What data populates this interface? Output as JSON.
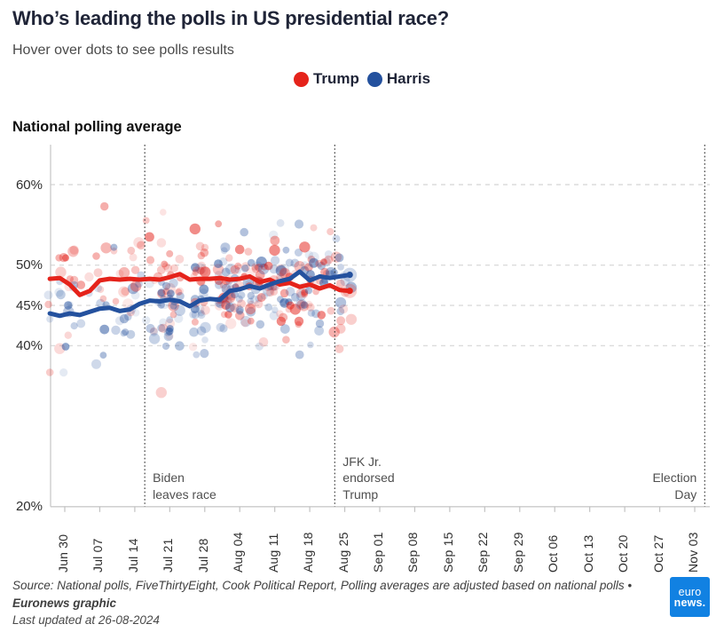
{
  "header": {
    "title": "Who’s leading the polls in US presidential race?",
    "subtitle": "Hover over dots to see polls results"
  },
  "legend": {
    "items": [
      {
        "label": "Trump",
        "color": "#e5231b"
      },
      {
        "label": "Harris",
        "color": "#24519e"
      }
    ]
  },
  "chart": {
    "heading": "National polling average"
  },
  "chart_data": {
    "type": "scatter+line",
    "title": "National polling average",
    "x_axis": {
      "base_date": "2024-06-30",
      "start": "2024-06-27",
      "end": "2024-11-06",
      "ticks": [
        {
          "label": "Jun 30",
          "date": "2024-06-30"
        },
        {
          "label": "Jul 07",
          "date": "2024-07-07"
        },
        {
          "label": "Jul 14",
          "date": "2024-07-14"
        },
        {
          "label": "Jul 21",
          "date": "2024-07-21"
        },
        {
          "label": "Jul 28",
          "date": "2024-07-28"
        },
        {
          "label": "Aug 04",
          "date": "2024-08-04"
        },
        {
          "label": "Aug 11",
          "date": "2024-08-11"
        },
        {
          "label": "Aug 18",
          "date": "2024-08-18"
        },
        {
          "label": "Aug 25",
          "date": "2024-08-25"
        },
        {
          "label": "Sep 01",
          "date": "2024-09-01"
        },
        {
          "label": "Sep 08",
          "date": "2024-09-08"
        },
        {
          "label": "Sep 15",
          "date": "2024-09-15"
        },
        {
          "label": "Sep 22",
          "date": "2024-09-22"
        },
        {
          "label": "Sep 29",
          "date": "2024-09-29"
        },
        {
          "label": "Oct 06",
          "date": "2024-10-06"
        },
        {
          "label": "Oct 13",
          "date": "2024-10-13"
        },
        {
          "label": "Oct 20",
          "date": "2024-10-20"
        },
        {
          "label": "Oct 27",
          "date": "2024-10-27"
        },
        {
          "label": "Nov 03",
          "date": "2024-11-03"
        }
      ]
    },
    "y_axis": {
      "unit": "%",
      "range": [
        20,
        65
      ],
      "tick_labels": [
        "60%",
        "50%",
        "45%",
        "40%",
        "20%"
      ],
      "tick_values": [
        60,
        50,
        45,
        40,
        20
      ],
      "grid_values": [
        60,
        50,
        45,
        40
      ],
      "grid_style": "dashed"
    },
    "series": [
      {
        "name": "Trump",
        "color": "#e5231b",
        "points": [
          [
            "2024-06-27",
            48.3
          ],
          [
            "2024-06-29",
            48.4
          ],
          [
            "2024-07-01",
            47.6
          ],
          [
            "2024-07-03",
            46.3
          ],
          [
            "2024-07-05",
            46.8
          ],
          [
            "2024-07-07",
            48.1
          ],
          [
            "2024-07-09",
            48.3
          ],
          [
            "2024-07-11",
            48.2
          ],
          [
            "2024-07-13",
            48.3
          ],
          [
            "2024-07-15",
            48.2
          ],
          [
            "2024-07-17",
            48.3
          ],
          [
            "2024-07-19",
            48.2
          ],
          [
            "2024-07-21",
            48.5
          ],
          [
            "2024-07-23",
            48.9
          ],
          [
            "2024-07-25",
            48.2
          ],
          [
            "2024-07-27",
            48.3
          ],
          [
            "2024-07-29",
            48.3
          ],
          [
            "2024-07-31",
            48.4
          ],
          [
            "2024-08-02",
            48.2
          ],
          [
            "2024-08-04",
            48.3
          ],
          [
            "2024-08-06",
            48.6
          ],
          [
            "2024-08-08",
            47.9
          ],
          [
            "2024-08-10",
            48.2
          ],
          [
            "2024-08-12",
            47.6
          ],
          [
            "2024-08-14",
            47.8
          ],
          [
            "2024-08-16",
            47.3
          ],
          [
            "2024-08-18",
            47.6
          ],
          [
            "2024-08-20",
            47.1
          ],
          [
            "2024-08-22",
            47.5
          ],
          [
            "2024-08-24",
            46.9
          ],
          [
            "2024-08-26",
            46.8
          ]
        ]
      },
      {
        "name": "Harris",
        "color": "#24519e",
        "points": [
          [
            "2024-06-27",
            44.0
          ],
          [
            "2024-06-29",
            43.7
          ],
          [
            "2024-07-01",
            44.0
          ],
          [
            "2024-07-03",
            43.8
          ],
          [
            "2024-07-05",
            44.2
          ],
          [
            "2024-07-07",
            44.6
          ],
          [
            "2024-07-09",
            44.7
          ],
          [
            "2024-07-11",
            44.3
          ],
          [
            "2024-07-13",
            44.5
          ],
          [
            "2024-07-15",
            45.2
          ],
          [
            "2024-07-17",
            45.6
          ],
          [
            "2024-07-19",
            45.5
          ],
          [
            "2024-07-21",
            45.7
          ],
          [
            "2024-07-23",
            45.5
          ],
          [
            "2024-07-25",
            44.9
          ],
          [
            "2024-07-27",
            45.6
          ],
          [
            "2024-07-29",
            45.8
          ],
          [
            "2024-07-31",
            45.7
          ],
          [
            "2024-08-02",
            46.8
          ],
          [
            "2024-08-04",
            47.0
          ],
          [
            "2024-08-06",
            47.4
          ],
          [
            "2024-08-08",
            47.1
          ],
          [
            "2024-08-10",
            47.6
          ],
          [
            "2024-08-12",
            48.0
          ],
          [
            "2024-08-14",
            48.3
          ],
          [
            "2024-08-16",
            49.2
          ],
          [
            "2024-08-18",
            48.1
          ],
          [
            "2024-08-20",
            48.6
          ],
          [
            "2024-08-22",
            48.4
          ],
          [
            "2024-08-24",
            48.6
          ],
          [
            "2024-08-26",
            48.8
          ]
        ]
      }
    ],
    "annotations": [
      {
        "id": "biden",
        "date": "2024-07-16",
        "side": "right",
        "text_lines": [
          "Biden",
          "leaves race"
        ]
      },
      {
        "id": "rfk",
        "date": "2024-08-23",
        "side": "right",
        "text_lines": [
          "JFK Jr.",
          "endorsed",
          "Trump"
        ]
      },
      {
        "id": "election",
        "date": "2024-11-05",
        "side": "left",
        "text_lines": [
          "Election",
          "Day"
        ]
      }
    ],
    "scatter": {
      "description": "individual national poll results as translucent dots, one per candidate per poll, Jun 27 - Aug 26",
      "seed": 20240826,
      "start_offset_days": -3,
      "end_offset_days": 57,
      "density_bands": [
        {
          "until": 17,
          "skip": 0.3,
          "min": 1,
          "max": 3
        },
        {
          "until": 51,
          "skip": 0.12,
          "min": 2,
          "max": 7
        },
        {
          "until": 57,
          "skip": 0.1,
          "min": 1,
          "max": 4
        }
      ],
      "trump_sd": 3.3,
      "trump_bias": -0.6,
      "harris_sd": 2.9,
      "harris_bias": -0.3,
      "outlier_prob": 0.04,
      "outlier_extra": 4.0,
      "clamp": [
        31.5,
        60.2
      ],
      "x_jitter_days": 0.35,
      "radius_base": 4.4,
      "radius_large": 6.2,
      "large_prob": 0.12,
      "alpha_min": 0.1,
      "alpha_range": 0.3,
      "dark_prob": 0.09,
      "dark_alpha": 0.52
    }
  },
  "footer": {
    "source_text": "Source: National polls, FiveThirtyEight, Cook Political Report, Polling averages are adjusted based on national polls • ",
    "credit": "Euronews graphic",
    "updated": "Last updated at 26-08-2024",
    "logo": {
      "line1": "euro",
      "line2": "news.",
      "color": "#1181e2"
    }
  }
}
